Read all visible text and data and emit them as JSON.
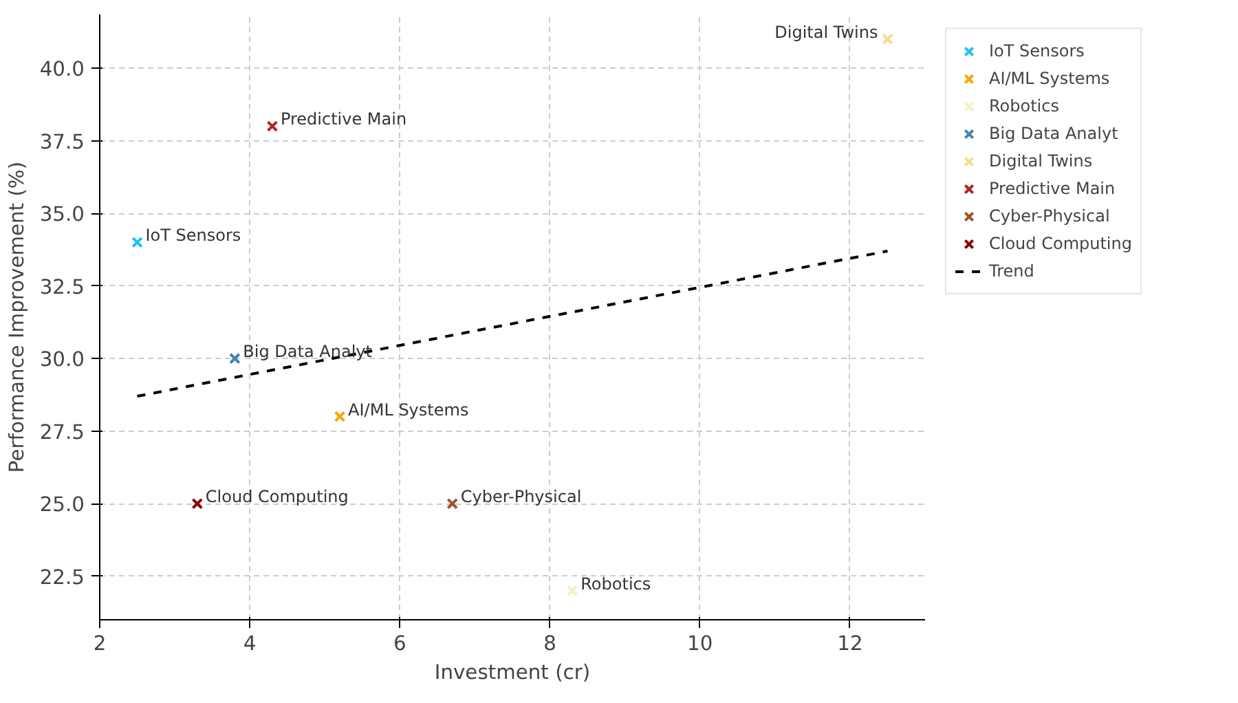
{
  "chart_data": {
    "type": "scatter",
    "xlabel": "Investment (cr)",
    "ylabel": "Performance Improvement (%)",
    "xlim": [
      2,
      13
    ],
    "ylim": [
      21,
      41.85
    ],
    "xticks": [
      2,
      4,
      6,
      8,
      10,
      12
    ],
    "yticks": [
      {
        "value": 22.5,
        "label": "22.5"
      },
      {
        "value": 25,
        "label": "25.0"
      },
      {
        "value": 27.5,
        "label": "27.5"
      },
      {
        "value": 30,
        "label": "30.0"
      },
      {
        "value": 32.5,
        "label": "32.5"
      },
      {
        "value": 35,
        "label": "35.0"
      },
      {
        "value": 37.5,
        "label": "37.5"
      },
      {
        "value": 40,
        "label": "40.0"
      }
    ],
    "grid": true,
    "legend": "top right",
    "marker": "cross",
    "series": [
      {
        "name": "IoT Sensors",
        "color": "#1ec0ff",
        "x": [
          2.5
        ],
        "values": [
          34
        ]
      },
      {
        "name": "AI/ML Systems",
        "color": "#ffa500",
        "x": [
          5.2
        ],
        "values": [
          28
        ]
      },
      {
        "name": "Robotics",
        "color": "#f8f0c0",
        "x": [
          8.3
        ],
        "values": [
          22
        ]
      },
      {
        "name": "Big Data Analyt",
        "color": "#4682b4",
        "x": [
          3.8
        ],
        "values": [
          30
        ]
      },
      {
        "name": "Digital Twins",
        "color": "#f0e08c",
        "x": [
          12.5
        ],
        "values": [
          41
        ]
      },
      {
        "name": "Predictive Main",
        "color": "#b22222",
        "x": [
          4.3
        ],
        "values": [
          38
        ]
      },
      {
        "name": "Cyber-Physical",
        "color": "#a0522d",
        "x": [
          6.7
        ],
        "values": [
          25
        ]
      },
      {
        "name": "Cloud Computing",
        "color": "#8b0000",
        "x": [
          3.3
        ],
        "values": [
          25
        ]
      },
      {
        "name": "Trend",
        "type": "line",
        "marker": "none",
        "line_style": "dashed",
        "color": "#000000",
        "x": [
          2.5,
          12.5
        ],
        "values": [
          28.7,
          33.7
        ]
      }
    ]
  }
}
